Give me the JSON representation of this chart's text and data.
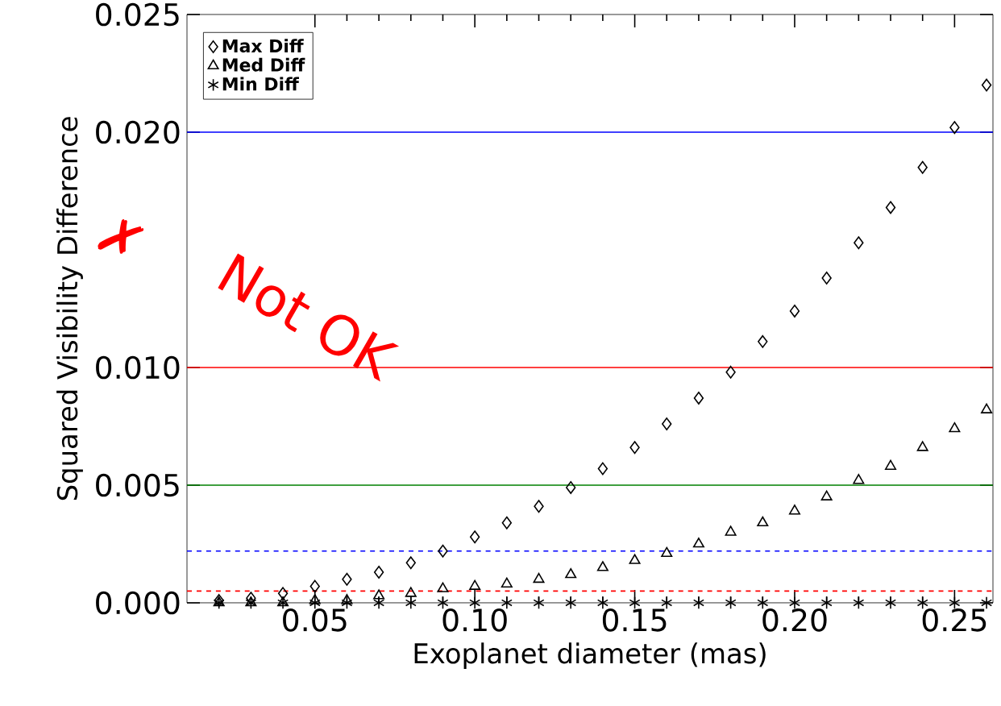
{
  "chart_data": {
    "type": "scatter",
    "xlabel": "Exoplanet diameter (mas)",
    "ylabel": "Squared Visibility Difference",
    "x": [
      0.02,
      0.03,
      0.04,
      0.05,
      0.06,
      0.07,
      0.08,
      0.09,
      0.1,
      0.11,
      0.12,
      0.13,
      0.14,
      0.15,
      0.16,
      0.17,
      0.18,
      0.19,
      0.2,
      0.21,
      0.22,
      0.23,
      0.24,
      0.25,
      0.26
    ],
    "series": [
      {
        "name": "Max Diff",
        "color": "#000000",
        "marker": "diamond",
        "values": [
          0.0001,
          0.0002,
          0.0004,
          0.0007,
          0.001,
          0.0013,
          0.0017,
          0.0022,
          0.0028,
          0.0034,
          0.0041,
          0.0049,
          0.0057,
          0.0066,
          0.0076,
          0.0087,
          0.0098,
          0.0111,
          0.0124,
          0.0138,
          0.0153,
          0.0168,
          0.0185,
          0.0202,
          0.022
        ]
      },
      {
        "name": "Med Diff",
        "color": "#000000",
        "marker": "triangle",
        "values": [
          0,
          0,
          0,
          0.0001,
          0.0001,
          0.0003,
          0.0004,
          0.0006,
          0.0007,
          0.0008,
          0.001,
          0.0012,
          0.0015,
          0.0018,
          0.0021,
          0.0025,
          0.003,
          0.0034,
          0.0039,
          0.0045,
          0.0052,
          0.0058,
          0.0066,
          0.0074,
          0.0082
        ]
      },
      {
        "name": "Min Diff",
        "color": "#000000",
        "marker": "cross",
        "values": [
          0,
          0,
          0,
          0,
          0,
          0,
          0,
          0,
          0,
          0,
          0,
          0,
          0,
          0,
          0,
          0,
          0,
          0,
          0,
          0,
          0,
          0,
          0,
          0,
          0
        ]
      }
    ],
    "xlim": [
      0.01,
      0.262
    ],
    "ylim": [
      0,
      0.025
    ],
    "xticks": [
      {
        "value": 0.05,
        "label": "0.05"
      },
      {
        "value": 0.1,
        "label": "0.10"
      },
      {
        "value": 0.15,
        "label": "0.15"
      },
      {
        "value": 0.2,
        "label": "0.20"
      },
      {
        "value": 0.25,
        "label": "0.25"
      }
    ],
    "yticks": [
      {
        "value": 0,
        "label": "0.000"
      },
      {
        "value": 0.005,
        "label": "0.005"
      },
      {
        "value": 0.01,
        "label": "0.010"
      },
      {
        "value": 0.02,
        "label": "0.020"
      },
      {
        "value": 0.025,
        "label": "0.025"
      }
    ],
    "ref_lines": [
      {
        "axis": "y",
        "value": 0.02,
        "color": "#0000ff",
        "line_style": "solid"
      },
      {
        "axis": "y",
        "value": 0.01,
        "color": "#ff0000",
        "line_style": "solid"
      },
      {
        "axis": "y",
        "value": 0.005,
        "color": "#008000",
        "line_style": "solid"
      },
      {
        "axis": "y",
        "value": 0.0022,
        "color": "#0000ff",
        "line_style": "dashed"
      },
      {
        "axis": "y",
        "value": 0.0005,
        "color": "#ff0000",
        "line_style": "dashed"
      }
    ],
    "annotations": [
      "✗",
      "Not OK"
    ],
    "legend": "top left",
    "grid": false
  }
}
